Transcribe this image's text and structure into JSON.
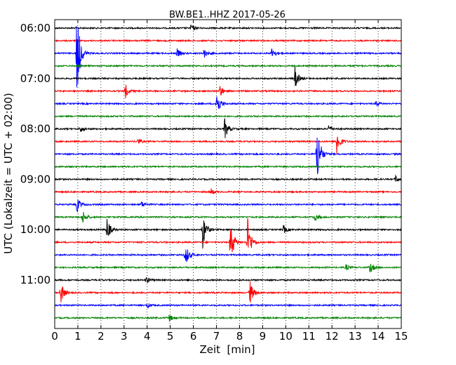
{
  "chart_data": {
    "type": "line",
    "title": "BW.BE1..HHZ 2017-05-26",
    "xlabel": "Zeit  [min]",
    "ylabel": "UTC (Lokalzeit = UTC + 02:00)",
    "xlim": [
      0,
      15
    ],
    "xticks": [
      0,
      1,
      2,
      3,
      4,
      5,
      6,
      7,
      8,
      9,
      10,
      11,
      12,
      13,
      14,
      15
    ],
    "xtick_labels": [
      "0",
      "1",
      "2",
      "3",
      "4",
      "5",
      "6",
      "7",
      "8",
      "9",
      "10",
      "11",
      "12",
      "13",
      "14",
      "15"
    ],
    "hour_labels": [
      {
        "label": "06:00",
        "row": 0
      },
      {
        "label": "07:00",
        "row": 4
      },
      {
        "label": "08:00",
        "row": 8
      },
      {
        "label": "09:00",
        "row": 12
      },
      {
        "label": "10:00",
        "row": 16
      },
      {
        "label": "11:00",
        "row": 20
      }
    ],
    "row_colors": [
      "#000000",
      "#ff0000",
      "#0000ff",
      "#008000"
    ],
    "grid": "vertical dotted",
    "traces": [
      {
        "events": [
          {
            "x": 5.9,
            "amp": 0.35
          }
        ]
      },
      {
        "events": []
      },
      {
        "events": [
          {
            "x": 0.95,
            "amp": 4.0
          },
          {
            "x": 5.3,
            "amp": 0.35
          },
          {
            "x": 6.45,
            "amp": 0.4
          },
          {
            "x": 9.4,
            "amp": 0.5
          }
        ]
      },
      {
        "events": []
      },
      {
        "events": [
          {
            "x": 10.4,
            "amp": 0.9
          }
        ]
      },
      {
        "events": [
          {
            "x": 3.05,
            "amp": 0.6
          },
          {
            "x": 7.15,
            "amp": 0.55
          }
        ]
      },
      {
        "events": [
          {
            "x": 7.0,
            "amp": 1.2
          },
          {
            "x": 13.9,
            "amp": 0.25
          }
        ]
      },
      {
        "events": []
      },
      {
        "events": [
          {
            "x": 1.1,
            "amp": 0.3
          },
          {
            "x": 7.35,
            "amp": 0.9
          },
          {
            "x": 11.85,
            "amp": 0.35
          }
        ]
      },
      {
        "events": [
          {
            "x": 3.6,
            "amp": 0.25
          },
          {
            "x": 12.2,
            "amp": 1.2
          }
        ]
      },
      {
        "events": [
          {
            "x": 11.35,
            "amp": 2.9
          }
        ]
      },
      {
        "events": []
      },
      {
        "events": [
          {
            "x": 14.75,
            "amp": 0.3
          }
        ]
      },
      {
        "events": [
          {
            "x": 6.75,
            "amp": 0.3
          }
        ]
      },
      {
        "events": [
          {
            "x": 0.95,
            "amp": 0.7
          },
          {
            "x": 3.75,
            "amp": 0.25
          }
        ]
      },
      {
        "events": [
          {
            "x": 1.2,
            "amp": 0.6
          },
          {
            "x": 11.25,
            "amp": 0.35
          }
        ]
      },
      {
        "events": [
          {
            "x": 2.25,
            "amp": 1.0
          },
          {
            "x": 6.4,
            "amp": 1.6
          },
          {
            "x": 9.9,
            "amp": 0.35
          }
        ]
      },
      {
        "events": [
          {
            "x": 7.6,
            "amp": 2.0
          },
          {
            "x": 8.35,
            "amp": 2.0
          }
        ]
      },
      {
        "events": [
          {
            "x": 5.65,
            "amp": 1.0
          }
        ]
      },
      {
        "events": [
          {
            "x": 12.6,
            "amp": 0.25
          },
          {
            "x": 13.65,
            "amp": 0.5
          }
        ]
      },
      {
        "events": [
          {
            "x": 3.95,
            "amp": 0.3
          }
        ]
      },
      {
        "events": [
          {
            "x": 0.25,
            "amp": 1.0
          },
          {
            "x": 8.45,
            "amp": 1.0
          }
        ]
      },
      {
        "events": [
          {
            "x": 4.0,
            "amp": 0.2
          }
        ]
      },
      {
        "events": [
          {
            "x": 4.95,
            "amp": 0.3
          }
        ]
      }
    ]
  }
}
